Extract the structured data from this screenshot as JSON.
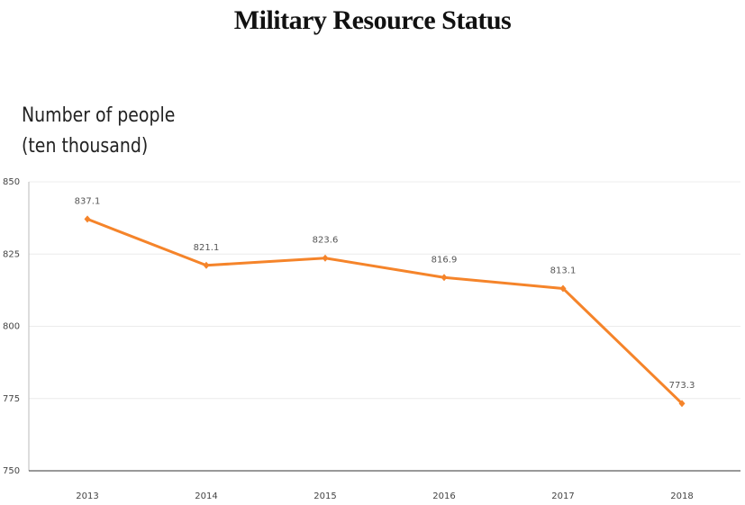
{
  "chart_data": {
    "type": "line",
    "title": "Military Resource Status",
    "ylabel_lines": [
      "Number of people",
      "(ten thousand)"
    ],
    "xlabel": "",
    "categories": [
      "2013",
      "2014",
      "2015",
      "2016",
      "2017",
      "2018"
    ],
    "series": [
      {
        "values": [
          837.1,
          821.1,
          823.6,
          816.9,
          813.1,
          773.3
        ],
        "labels": [
          "837.1",
          "821.1",
          "823.6",
          "816.9",
          "813.1",
          "773.3"
        ],
        "color": "#f5842a"
      }
    ],
    "ylim": [
      750,
      850
    ],
    "yticks": [
      "750",
      "775",
      "800",
      "825",
      "850"
    ],
    "grid": true,
    "legend": "none"
  }
}
